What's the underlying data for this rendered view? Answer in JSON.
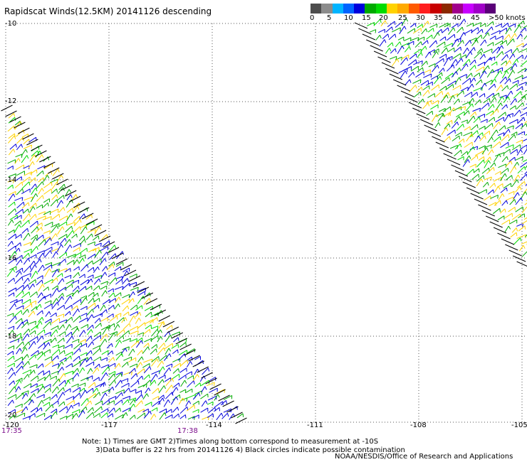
{
  "title": "Rapidscat Winds(12.5KM) 20141126 descending",
  "colorbar": {
    "colors": [
      "#4d4d4d",
      "#8c8c8c",
      "#00b4ff",
      "#0064ff",
      "#0000dc",
      "#00aa00",
      "#00dc00",
      "#ffd200",
      "#ffaa00",
      "#ff5a00",
      "#ff1e1e",
      "#c80000",
      "#8c2800",
      "#a0008c",
      "#c800ff",
      "#a000c8",
      "#5a0078"
    ],
    "labels": [
      "0",
      "5",
      "10",
      "15",
      "20",
      "25",
      "30",
      "35",
      "40",
      "45",
      ">50 knots"
    ]
  },
  "map": {
    "lat_labels": [
      "-10",
      "-12",
      "-14",
      "-16",
      "-18",
      "-20"
    ],
    "lon_labels": [
      "-120",
      "-117",
      "-114",
      "-111",
      "-108",
      "-105"
    ],
    "time_labels": [
      "17:35",
      "17:38"
    ]
  },
  "wind_colors": {
    "blue": "#0000dc",
    "green": "#00aa00",
    "lightgreen": "#00dc00",
    "yellow": "#ffd200",
    "edge": "#000000"
  },
  "notes": [
    "Note: 1) Times are GMT 2)Times along bottom correspond to measurement at -10S",
    "      3)Data buffer is 22 hrs from 20141126 4) Black circles indicate possible contamination"
  ],
  "credit": "NOAA/NESDIS/Office of Research and Applications"
}
